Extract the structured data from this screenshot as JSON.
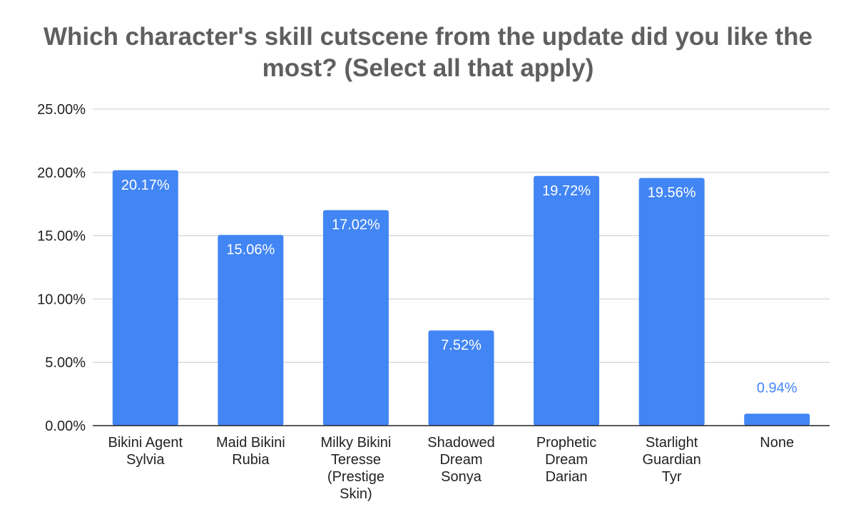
{
  "colors": {
    "bar": "#4285f4",
    "grid": "#cccccc",
    "axis": "#222222",
    "label_inside": "#ffffff",
    "label_outside": "#4285f4",
    "title": "#5f5f5f"
  },
  "chart_data": {
    "type": "bar",
    "title": "Which character's skill cutscene from the update did you like the most? (Select all that apply)",
    "xlabel": "",
    "ylabel": "",
    "ylim": [
      0,
      25
    ],
    "yticks": [
      0,
      5,
      10,
      15,
      20,
      25
    ],
    "ytick_labels": [
      "0.00%",
      "5.00%",
      "10.00%",
      "15.00%",
      "20.00%",
      "25.00%"
    ],
    "grid": true,
    "legend": "none",
    "categories": [
      [
        "Bikini Agent",
        "Sylvia"
      ],
      [
        "Maid Bikini",
        "Rubia"
      ],
      [
        "Milky Bikini",
        "Teresse",
        "(Prestige",
        "Skin)"
      ],
      [
        "Shadowed",
        "Dream",
        "Sonya"
      ],
      [
        "Prophetic",
        "Dream",
        "Darian"
      ],
      [
        "Starlight",
        "Guardian",
        "Tyr"
      ],
      [
        "None"
      ]
    ],
    "values": [
      20.17,
      15.06,
      17.02,
      7.52,
      19.72,
      19.56,
      0.94
    ],
    "data_labels": [
      "20.17%",
      "15.06%",
      "17.02%",
      "7.52%",
      "19.72%",
      "19.56%",
      "0.94%"
    ]
  }
}
